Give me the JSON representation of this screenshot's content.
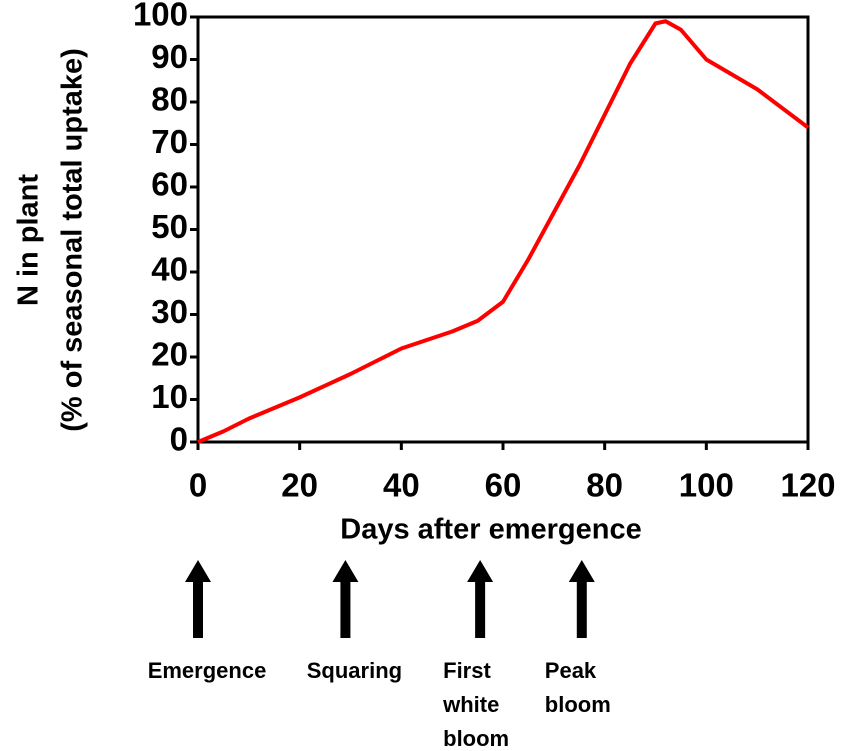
{
  "chart_data": {
    "type": "line",
    "xlabel": "Days after emergence",
    "ylabel": [
      "N in plant",
      "(% of seasonal total uptake)"
    ],
    "series": [
      {
        "color": "#ff0000",
        "x": [
          0,
          5,
          10,
          20,
          30,
          40,
          50,
          55,
          60,
          65,
          70,
          75,
          80,
          85,
          90,
          92,
          95,
          100,
          110,
          120
        ],
        "values": [
          0,
          2.5,
          5.5,
          10.5,
          16,
          22,
          26,
          28.5,
          33,
          43,
          54,
          65,
          77,
          89,
          98.5,
          99,
          97,
          90,
          83,
          74
        ]
      }
    ],
    "xlim": [
      0,
      120
    ],
    "xticks": [
      0,
      20,
      40,
      60,
      80,
      100,
      120
    ],
    "ylim": [
      0,
      100
    ],
    "yticks": [
      0,
      10,
      20,
      30,
      40,
      50,
      60,
      70,
      80,
      90,
      100
    ],
    "stages": [
      {
        "day": 0,
        "lines": [
          "Emergence"
        ]
      },
      {
        "day": 29,
        "lines": [
          "Squaring"
        ]
      },
      {
        "day": 55.5,
        "lines": [
          "First",
          "white",
          "bloom"
        ]
      },
      {
        "day": 75.5,
        "lines": [
          "Peak",
          "bloom"
        ]
      }
    ]
  }
}
